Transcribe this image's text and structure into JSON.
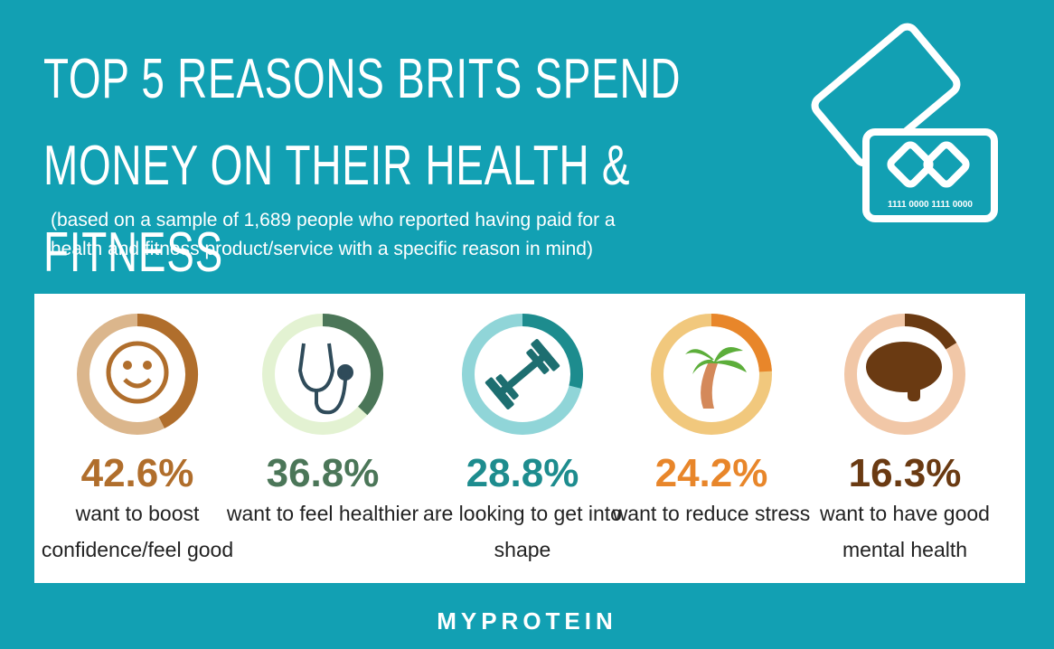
{
  "chart_data": {
    "type": "ring",
    "title": "TOP 5 REASONS BRITS SPEND MONEY ON THEIR HEALTH & FITNESS",
    "subtitle": "(based on a sample of 1,689 people who reported having paid for a health and fitness product/service with a specific reason in mind)",
    "categories": [
      "want to boost confidence/feel good",
      "want to feel healthier",
      "are looking to get into shape",
      "want to reduce stress",
      "want to have good mental health"
    ],
    "values": [
      42.6,
      36.8,
      28.8,
      24.2,
      16.3
    ],
    "value_labels": [
      "42.6%",
      "36.8%",
      "28.8%",
      "24.2%",
      "16.3%"
    ],
    "colors": [
      "#b06e2c",
      "#4b7658",
      "#1d8c8e",
      "#e8862a",
      "#6a3a12"
    ],
    "track_colors": [
      "#dbb68c",
      "#e3f2d2",
      "#90d5d8",
      "#f1c87d",
      "#f1c7a7"
    ]
  },
  "card_text": "1111 0000 1111 0000",
  "footer": "MYPROTEIN"
}
